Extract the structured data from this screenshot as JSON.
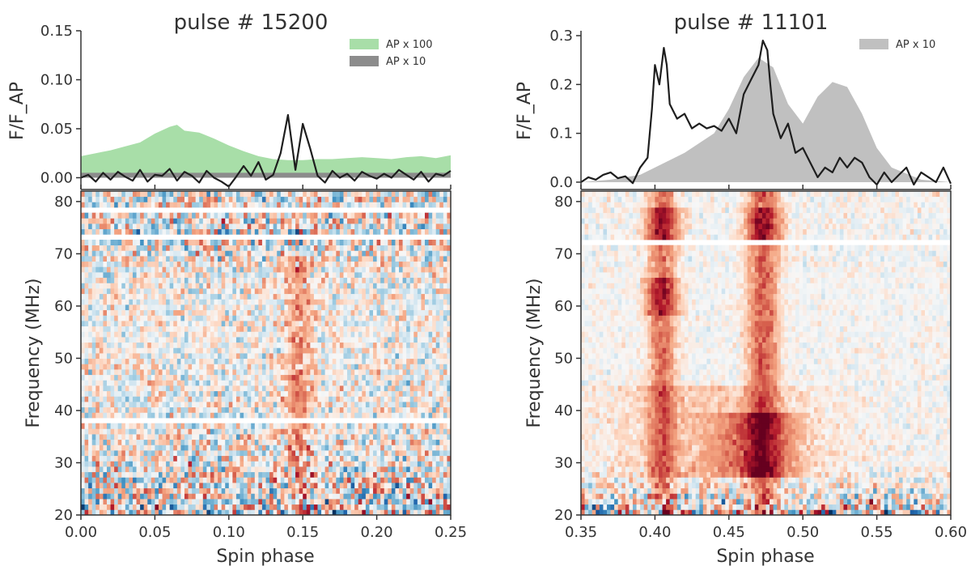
{
  "chart_data": [
    {
      "type": "line",
      "title": "pulse # 15200",
      "ylabel": "F/F_AP",
      "xlim": [
        0.0,
        0.25
      ],
      "ylim": [
        -0.012,
        0.15
      ],
      "yticks": [
        0.0,
        0.05,
        0.1,
        0.15
      ],
      "ytick_labels": [
        "0.00",
        "0.05",
        "0.10",
        "0.15"
      ],
      "legend_position": "top-right",
      "legend": [
        {
          "label": "AP x 100",
          "color": "#a8dea8"
        },
        {
          "label": "AP x 10",
          "color": "#8c8c8c"
        }
      ],
      "line_color": "#1e1e1e",
      "series": [
        {
          "name": "pulse",
          "x": [
            0.0,
            0.005,
            0.01,
            0.015,
            0.02,
            0.025,
            0.03,
            0.035,
            0.04,
            0.045,
            0.05,
            0.055,
            0.06,
            0.065,
            0.07,
            0.075,
            0.08,
            0.085,
            0.09,
            0.095,
            0.1,
            0.105,
            0.11,
            0.115,
            0.12,
            0.125,
            0.13,
            0.135,
            0.14,
            0.145,
            0.15,
            0.155,
            0.16,
            0.165,
            0.17,
            0.175,
            0.18,
            0.185,
            0.19,
            0.195,
            0.2,
            0.205,
            0.21,
            0.215,
            0.22,
            0.225,
            0.23,
            0.235,
            0.24,
            0.245,
            0.25
          ],
          "values": [
            0.0,
            0.003,
            -0.004,
            0.005,
            -0.002,
            0.006,
            0.001,
            -0.003,
            0.008,
            -0.004,
            0.003,
            0.002,
            0.009,
            -0.003,
            0.006,
            0.002,
            -0.005,
            0.007,
            0.0,
            -0.004,
            -0.009,
            0.001,
            0.012,
            0.002,
            0.016,
            -0.002,
            0.003,
            0.025,
            0.064,
            0.008,
            0.055,
            0.03,
            0.002,
            -0.005,
            0.007,
            0.0,
            0.004,
            -0.003,
            0.006,
            0.002,
            -0.001,
            0.004,
            0.0,
            0.008,
            0.003,
            -0.002,
            0.006,
            -0.004,
            0.004,
            0.002,
            0.007
          ]
        },
        {
          "name": "AP x 100",
          "x": [
            0.0,
            0.01,
            0.02,
            0.03,
            0.04,
            0.05,
            0.06,
            0.065,
            0.07,
            0.08,
            0.09,
            0.1,
            0.11,
            0.12,
            0.13,
            0.14,
            0.15,
            0.16,
            0.17,
            0.18,
            0.19,
            0.2,
            0.21,
            0.22,
            0.23,
            0.24,
            0.25
          ],
          "values": [
            0.022,
            0.025,
            0.028,
            0.032,
            0.036,
            0.045,
            0.052,
            0.054,
            0.048,
            0.046,
            0.04,
            0.033,
            0.027,
            0.022,
            0.019,
            0.018,
            0.018,
            0.019,
            0.019,
            0.02,
            0.021,
            0.02,
            0.019,
            0.021,
            0.022,
            0.02,
            0.023
          ]
        },
        {
          "name": "AP x 10",
          "x": [
            0.0,
            0.05,
            0.1,
            0.15,
            0.2,
            0.25
          ],
          "values": [
            0.005,
            0.005,
            0.005,
            0.005,
            0.005,
            0.005
          ]
        }
      ]
    },
    {
      "type": "line",
      "title": "pulse # 11101",
      "ylabel": "F/F_AP",
      "xlim": [
        0.35,
        0.6
      ],
      "ylim": [
        -0.015,
        0.31
      ],
      "yticks": [
        0.0,
        0.1,
        0.2,
        0.3
      ],
      "ytick_labels": [
        "0.0",
        "0.1",
        "0.2",
        "0.3"
      ],
      "legend_position": "top-right",
      "legend": [
        {
          "label": "AP x 10",
          "color": "#c0c0c0"
        }
      ],
      "line_color": "#1e1e1e",
      "series": [
        {
          "name": "pulse",
          "x": [
            0.35,
            0.355,
            0.36,
            0.365,
            0.37,
            0.375,
            0.38,
            0.385,
            0.39,
            0.395,
            0.398,
            0.4,
            0.403,
            0.406,
            0.408,
            0.41,
            0.415,
            0.42,
            0.425,
            0.43,
            0.435,
            0.44,
            0.445,
            0.45,
            0.455,
            0.46,
            0.465,
            0.47,
            0.473,
            0.476,
            0.478,
            0.48,
            0.485,
            0.49,
            0.495,
            0.5,
            0.505,
            0.51,
            0.515,
            0.52,
            0.525,
            0.53,
            0.535,
            0.54,
            0.545,
            0.55,
            0.555,
            0.56,
            0.565,
            0.57,
            0.575,
            0.58,
            0.585,
            0.59,
            0.595,
            0.6
          ],
          "values": [
            0.0,
            0.01,
            0.005,
            0.015,
            0.02,
            0.008,
            0.012,
            -0.002,
            0.03,
            0.05,
            0.15,
            0.24,
            0.2,
            0.275,
            0.24,
            0.16,
            0.13,
            0.14,
            0.11,
            0.12,
            0.11,
            0.115,
            0.105,
            0.13,
            0.1,
            0.18,
            0.21,
            0.24,
            0.29,
            0.27,
            0.2,
            0.14,
            0.09,
            0.12,
            0.06,
            0.07,
            0.04,
            0.01,
            0.03,
            0.02,
            0.05,
            0.03,
            0.05,
            0.04,
            0.01,
            -0.005,
            0.02,
            0.0,
            0.015,
            0.03,
            -0.005,
            0.02,
            0.01,
            0.0,
            0.03,
            -0.003
          ]
        },
        {
          "name": "AP x 10",
          "x": [
            0.35,
            0.37,
            0.39,
            0.4,
            0.42,
            0.44,
            0.45,
            0.46,
            0.47,
            0.48,
            0.49,
            0.5,
            0.51,
            0.52,
            0.53,
            0.54,
            0.55,
            0.56,
            0.58,
            0.6
          ],
          "values": [
            0.0,
            0.005,
            0.015,
            0.03,
            0.06,
            0.1,
            0.15,
            0.215,
            0.255,
            0.235,
            0.16,
            0.12,
            0.175,
            0.205,
            0.195,
            0.14,
            0.07,
            0.03,
            0.005,
            0.0
          ]
        }
      ]
    },
    {
      "type": "heatmap",
      "xlabel": "Spin phase",
      "ylabel": "Frequency (MHz)",
      "xlim": [
        0.0,
        0.25
      ],
      "ylim": [
        20,
        82
      ],
      "xticks": [
        0.0,
        0.05,
        0.1,
        0.15,
        0.2,
        0.25
      ],
      "xtick_labels": [
        "0.00",
        "0.05",
        "0.10",
        "0.15",
        "0.20",
        "0.25"
      ],
      "yticks": [
        20,
        30,
        40,
        50,
        60,
        70,
        80
      ],
      "ytick_labels": [
        "20",
        "30",
        "40",
        "50",
        "60",
        "70",
        "80"
      ],
      "colormap": "diverging red-blue",
      "seed": 15200,
      "ncols": 100,
      "nrows": 60,
      "masked_bands": [
        [
          37.4,
          38.6
        ],
        [
          72.8,
          73.5
        ],
        [
          77.6,
          78.6
        ]
      ],
      "features": [
        {
          "kind": "vertical",
          "center": 0.147,
          "width": 0.006,
          "amplitude": 0.35,
          "fmin": 20,
          "fmax": 70
        }
      ],
      "noise": [
        [
          20,
          0.85
        ],
        [
          22,
          0.75
        ],
        [
          27,
          0.55
        ],
        [
          32,
          0.38
        ],
        [
          40,
          0.3
        ],
        [
          55,
          0.22
        ],
        [
          68,
          0.3
        ],
        [
          74,
          0.6
        ],
        [
          82,
          0.45
        ]
      ]
    },
    {
      "type": "heatmap",
      "xlabel": "Spin phase",
      "ylabel": "Frequency (MHz)",
      "xlim": [
        0.35,
        0.6
      ],
      "ylim": [
        20,
        82
      ],
      "xticks": [
        0.35,
        0.4,
        0.45,
        0.5,
        0.55,
        0.6
      ],
      "xtick_labels": [
        "0.35",
        "0.40",
        "0.45",
        "0.50",
        "0.55",
        "0.60"
      ],
      "yticks": [
        20,
        30,
        40,
        50,
        60,
        70,
        80
      ],
      "ytick_labels": [
        "20",
        "30",
        "40",
        "50",
        "60",
        "70",
        "80"
      ],
      "colormap": "diverging red-blue",
      "seed": 11101,
      "ncols": 100,
      "nrows": 60,
      "masked_bands": [
        [
          71.3,
          72.2
        ]
      ],
      "features": [
        {
          "kind": "vertical",
          "center": 0.405,
          "width": 0.006,
          "amplitude": 0.45,
          "fmin": 20,
          "fmax": 82
        },
        {
          "kind": "vertical",
          "center": 0.473,
          "width": 0.007,
          "amplitude": 0.5,
          "fmin": 20,
          "fmax": 82
        },
        {
          "kind": "blob",
          "center": 0.47,
          "width": 0.018,
          "amplitude": 0.45,
          "fmin": 27,
          "fmax": 40
        },
        {
          "kind": "blob",
          "center": 0.405,
          "width": 0.008,
          "amplitude": 0.35,
          "fmin": 58,
          "fmax": 65
        },
        {
          "kind": "blob",
          "center": 0.405,
          "width": 0.008,
          "amplitude": 0.4,
          "fmin": 72,
          "fmax": 79
        },
        {
          "kind": "blob",
          "center": 0.473,
          "width": 0.008,
          "amplitude": 0.35,
          "fmin": 72,
          "fmax": 79
        },
        {
          "kind": "broad",
          "center": 0.44,
          "width": 0.05,
          "amplitude": 0.15,
          "fmin": 27,
          "fmax": 45
        }
      ],
      "noise": [
        [
          20,
          0.85
        ],
        [
          22,
          0.6
        ],
        [
          25,
          0.3
        ],
        [
          30,
          0.1
        ],
        [
          60,
          0.08
        ],
        [
          82,
          0.12
        ]
      ]
    }
  ]
}
